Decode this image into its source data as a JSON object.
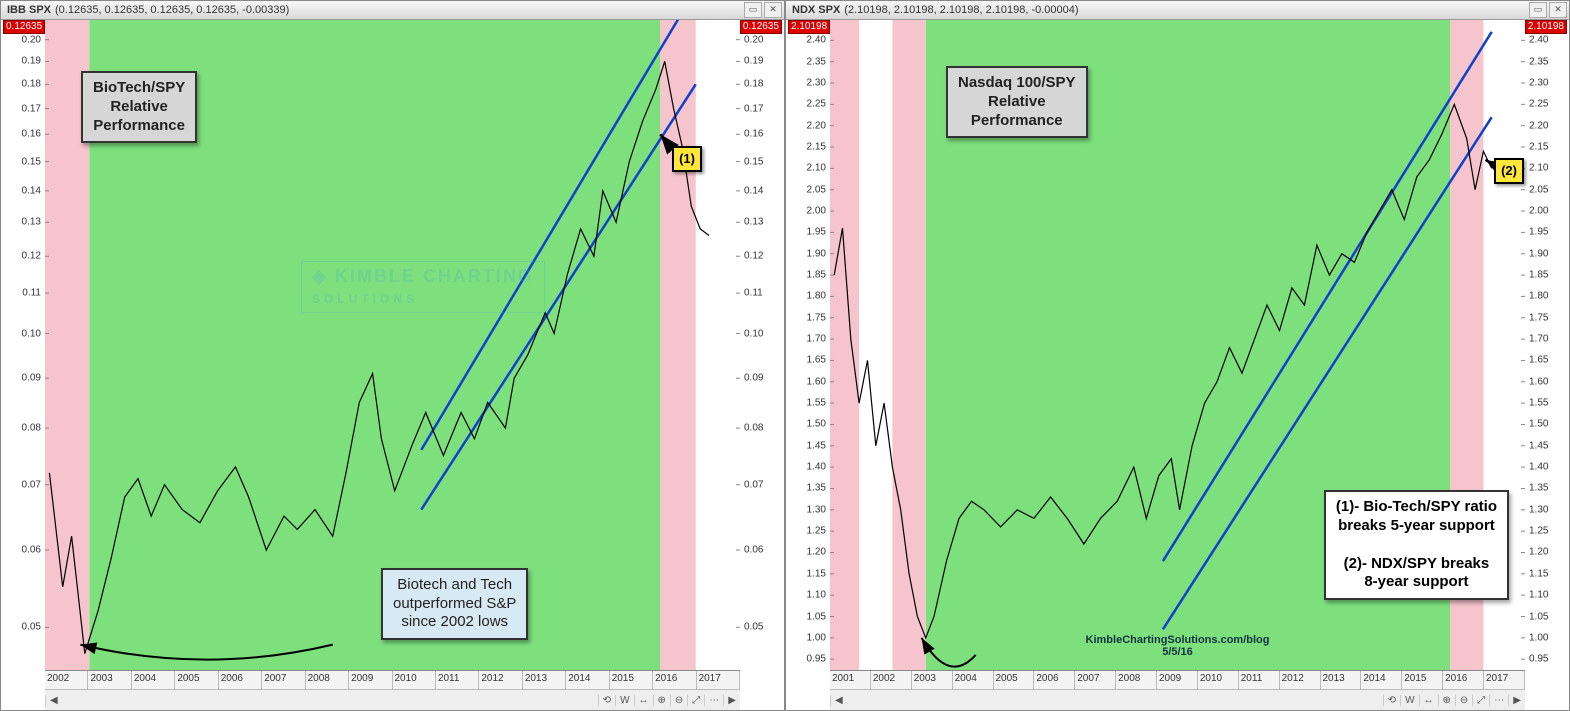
{
  "watermark": "KIMBLE CHARTING",
  "watermark2": "SOLUTIONS",
  "credit_line1": "KimbleChartingSolutions.com/blog",
  "credit_line2": "5/5/16",
  "toolbar_buttons": [
    "⟲",
    "W",
    "↔",
    "⊕",
    "⊖",
    "⤢",
    "⋯"
  ],
  "titlebar_buttons": [
    "▭",
    "✕"
  ],
  "left": {
    "ticker": "IBB SPX",
    "quote": "(0.12635, 0.12635, 0.12635, 0.12635, -0.00339)",
    "current_tag": "0.12635",
    "title_box": "BioTech/SPY\nRelative\nPerformance",
    "note_box": "Biotech and Tech\noutperformed S&P\nsince 2002 lows",
    "marker": "(1)",
    "x_labels": [
      "2002",
      "2003",
      "2004",
      "2005",
      "2006",
      "2007",
      "2008",
      "2009",
      "2010",
      "2011",
      "2012",
      "2013",
      "2014",
      "2015",
      "2016",
      "2017"
    ],
    "y_ticks": [
      0.05,
      0.06,
      0.07,
      0.08,
      0.09,
      0.1,
      0.11,
      0.12,
      0.13,
      0.14,
      0.15,
      0.16,
      0.17,
      0.18,
      0.19,
      0.2
    ],
    "y_scale": "log",
    "ylim": [
      0.045,
      0.21
    ],
    "xlim": [
      2001.5,
      2017.2
    ],
    "green_zone": [
      2002.5,
      2015.4
    ],
    "pink_zones": [
      [
        2001.5,
        2002.5
      ],
      [
        2015.4,
        2016.2
      ]
    ],
    "channel_upper": [
      [
        2010.0,
        0.076
      ],
      [
        2016.2,
        0.225
      ]
    ],
    "channel_lower": [
      [
        2010.0,
        0.066
      ],
      [
        2016.2,
        0.18
      ]
    ],
    "arrow_from": [
      2015.8,
      0.152
    ],
    "arrow_to": [
      2015.4,
      0.16
    ],
    "curve_arrow_from": [
      2008.0,
      0.048
    ],
    "curve_arrow_to": [
      2002.3,
      0.048
    ],
    "series_color": "#000",
    "channel_color": "#1040cc",
    "green": "#7de07d",
    "pink": "#f6c4cc",
    "series": [
      [
        2001.6,
        0.072
      ],
      [
        2001.9,
        0.055
      ],
      [
        2002.1,
        0.062
      ],
      [
        2002.4,
        0.047
      ],
      [
        2002.7,
        0.052
      ],
      [
        2003.0,
        0.059
      ],
      [
        2003.3,
        0.068
      ],
      [
        2003.6,
        0.071
      ],
      [
        2003.9,
        0.065
      ],
      [
        2004.2,
        0.07
      ],
      [
        2004.6,
        0.066
      ],
      [
        2005.0,
        0.064
      ],
      [
        2005.4,
        0.069
      ],
      [
        2005.8,
        0.073
      ],
      [
        2006.1,
        0.068
      ],
      [
        2006.5,
        0.06
      ],
      [
        2006.9,
        0.065
      ],
      [
        2007.2,
        0.063
      ],
      [
        2007.6,
        0.066
      ],
      [
        2008.0,
        0.062
      ],
      [
        2008.3,
        0.072
      ],
      [
        2008.6,
        0.085
      ],
      [
        2008.9,
        0.091
      ],
      [
        2009.1,
        0.078
      ],
      [
        2009.4,
        0.069
      ],
      [
        2009.8,
        0.077
      ],
      [
        2010.1,
        0.083
      ],
      [
        2010.5,
        0.075
      ],
      [
        2010.9,
        0.083
      ],
      [
        2011.2,
        0.078
      ],
      [
        2011.5,
        0.085
      ],
      [
        2011.9,
        0.08
      ],
      [
        2012.1,
        0.09
      ],
      [
        2012.4,
        0.095
      ],
      [
        2012.8,
        0.105
      ],
      [
        2013.0,
        0.1
      ],
      [
        2013.3,
        0.115
      ],
      [
        2013.6,
        0.128
      ],
      [
        2013.9,
        0.12
      ],
      [
        2014.1,
        0.14
      ],
      [
        2014.4,
        0.13
      ],
      [
        2014.7,
        0.15
      ],
      [
        2015.0,
        0.165
      ],
      [
        2015.3,
        0.178
      ],
      [
        2015.5,
        0.19
      ],
      [
        2015.7,
        0.17
      ],
      [
        2015.9,
        0.155
      ],
      [
        2016.1,
        0.135
      ],
      [
        2016.3,
        0.128
      ],
      [
        2016.5,
        0.126
      ]
    ]
  },
  "right": {
    "ticker": "NDX SPX",
    "quote": "(2.10198, 2.10198, 2.10198, 2.10198, -0.00004)",
    "current_tag": "2.10198",
    "title_box": "Nasdaq 100/SPY\nRelative\nPerformance",
    "note_box": "(1)- Bio-Tech/SPY ratio\nbreaks 5-year support\n\n(2)- NDX/SPY breaks\n8-year support",
    "marker": "(2)",
    "x_labels": [
      "2001",
      "2002",
      "2003",
      "2004",
      "2005",
      "2006",
      "2007",
      "2008",
      "2009",
      "2010",
      "2011",
      "2012",
      "2013",
      "2014",
      "2015",
      "2016",
      "2017"
    ],
    "y_ticks": [
      0.95,
      1.0,
      1.05,
      1.1,
      1.15,
      1.2,
      1.25,
      1.3,
      1.35,
      1.4,
      1.45,
      1.5,
      1.55,
      1.6,
      1.65,
      1.7,
      1.75,
      1.8,
      1.85,
      1.9,
      1.95,
      2.0,
      2.05,
      2.1,
      2.15,
      2.2,
      2.25,
      2.3,
      2.35,
      2.4
    ],
    "y_scale": "linear",
    "ylim": [
      0.92,
      2.45
    ],
    "xlim": [
      2000.5,
      2017.2
    ],
    "green_zone": [
      2002.8,
      2015.4
    ],
    "pink_zones": [
      [
        2000.5,
        2001.2
      ],
      [
        2002.0,
        2002.8
      ],
      [
        2015.4,
        2016.2
      ]
    ],
    "channel_upper": [
      [
        2008.5,
        1.18
      ],
      [
        2016.4,
        2.42
      ]
    ],
    "channel_lower": [
      [
        2008.5,
        1.02
      ],
      [
        2016.4,
        2.22
      ]
    ],
    "arrow_from": [
      2016.6,
      2.1
    ],
    "arrow_to": [
      2016.25,
      2.12
    ],
    "curve_arrow_from": [
      2004.0,
      0.96
    ],
    "curve_arrow_to": [
      2002.7,
      1.0
    ],
    "series_color": "#000",
    "channel_color": "#1040cc",
    "green": "#7de07d",
    "pink": "#f6c4cc",
    "series": [
      [
        2000.6,
        1.85
      ],
      [
        2000.8,
        1.96
      ],
      [
        2001.0,
        1.7
      ],
      [
        2001.2,
        1.55
      ],
      [
        2001.4,
        1.65
      ],
      [
        2001.6,
        1.45
      ],
      [
        2001.8,
        1.55
      ],
      [
        2002.0,
        1.4
      ],
      [
        2002.2,
        1.3
      ],
      [
        2002.4,
        1.15
      ],
      [
        2002.6,
        1.05
      ],
      [
        2002.8,
        1.0
      ],
      [
        2003.0,
        1.05
      ],
      [
        2003.3,
        1.18
      ],
      [
        2003.6,
        1.28
      ],
      [
        2003.9,
        1.32
      ],
      [
        2004.2,
        1.3
      ],
      [
        2004.6,
        1.26
      ],
      [
        2005.0,
        1.3
      ],
      [
        2005.4,
        1.28
      ],
      [
        2005.8,
        1.33
      ],
      [
        2006.2,
        1.28
      ],
      [
        2006.6,
        1.22
      ],
      [
        2007.0,
        1.28
      ],
      [
        2007.4,
        1.32
      ],
      [
        2007.8,
        1.4
      ],
      [
        2008.1,
        1.28
      ],
      [
        2008.4,
        1.38
      ],
      [
        2008.7,
        1.42
      ],
      [
        2008.9,
        1.3
      ],
      [
        2009.2,
        1.45
      ],
      [
        2009.5,
        1.55
      ],
      [
        2009.8,
        1.6
      ],
      [
        2010.1,
        1.68
      ],
      [
        2010.4,
        1.62
      ],
      [
        2010.7,
        1.7
      ],
      [
        2011.0,
        1.78
      ],
      [
        2011.3,
        1.72
      ],
      [
        2011.6,
        1.82
      ],
      [
        2011.9,
        1.78
      ],
      [
        2012.2,
        1.92
      ],
      [
        2012.5,
        1.85
      ],
      [
        2012.8,
        1.9
      ],
      [
        2013.1,
        1.88
      ],
      [
        2013.4,
        1.95
      ],
      [
        2013.7,
        2.0
      ],
      [
        2014.0,
        2.05
      ],
      [
        2014.3,
        1.98
      ],
      [
        2014.6,
        2.08
      ],
      [
        2014.9,
        2.12
      ],
      [
        2015.2,
        2.18
      ],
      [
        2015.5,
        2.25
      ],
      [
        2015.8,
        2.17
      ],
      [
        2016.0,
        2.05
      ],
      [
        2016.2,
        2.14
      ],
      [
        2016.4,
        2.1
      ]
    ]
  }
}
